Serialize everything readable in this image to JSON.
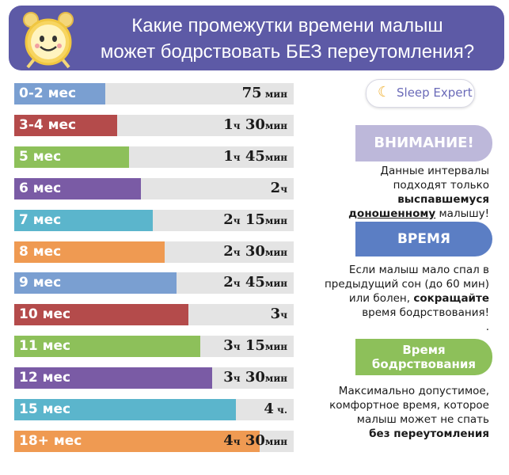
{
  "header": {
    "title_line1": "Какие промежутки времени малыш",
    "title_line2": "может бодрствовать БЕЗ переутомления?"
  },
  "logo": {
    "text": "Sleep Expert",
    "moon": "☾"
  },
  "chart_data": {
    "type": "bar",
    "orientation": "horizontal",
    "unit": "minutes",
    "xlim": [
      0,
      300
    ],
    "categories": [
      "0-2 мес",
      "3-4 мес",
      "5 мес",
      "6 мес",
      "7 мес",
      "8 мес",
      "9 мес",
      "10 мес",
      "11 мес",
      "12 мес",
      "15 мес",
      "18+ мес"
    ],
    "values": [
      75,
      90,
      105,
      120,
      135,
      150,
      165,
      180,
      195,
      210,
      240,
      270
    ],
    "colors": [
      "#7a9fd1",
      "#b44b4b",
      "#8dc05a",
      "#7a5ba5",
      "#5bb5cc",
      "#ef9a52",
      "#7a9fd1",
      "#b44b4b",
      "#8dc05a",
      "#7a5ba5",
      "#5bb5cc",
      "#ef9a52"
    ],
    "labels": [
      {
        "h": "",
        "hu": "",
        "m": "75",
        "mu": " мин"
      },
      {
        "h": "1",
        "hu": "ч",
        "m": " 30",
        "mu": "мин"
      },
      {
        "h": "1",
        "hu": "ч",
        "m": " 45",
        "mu": "мин"
      },
      {
        "h": "2",
        "hu": "ч",
        "m": "",
        "mu": ""
      },
      {
        "h": "2",
        "hu": "ч",
        "m": " 15",
        "mu": "мин"
      },
      {
        "h": "2",
        "hu": "ч",
        "m": " 30",
        "mu": "мин"
      },
      {
        "h": "2",
        "hu": "ч",
        "m": " 45",
        "mu": "мин"
      },
      {
        "h": "3",
        "hu": "ч",
        "m": "",
        "mu": ""
      },
      {
        "h": "3",
        "hu": "ч",
        "m": " 15",
        "mu": "мин"
      },
      {
        "h": "3",
        "hu": "ч",
        "m": " 30",
        "mu": "мин"
      },
      {
        "h": "4",
        "hu": " ч.",
        "m": "",
        "mu": ""
      },
      {
        "h": "4",
        "hu": "ч",
        "m": " 30",
        "mu": "мин"
      }
    ]
  },
  "attention": {
    "badge": "ВНИМАНИЕ!",
    "line1": "Данные интервалы",
    "line2": "подходят только",
    "line3_bold": "выспавшемуся",
    "line4_underlined": "доношенному",
    "line4_rest": " малышу!"
  },
  "time": {
    "badge": "ВРЕМЯ",
    "line1": "Если малыш  мало спал в",
    "line2": "предыдущий сон (до 60 мин)",
    "line3_plain": "или болен, ",
    "line3_bold": "сокращайте",
    "line4": "время бодрствования!",
    "line5": "."
  },
  "wake": {
    "badge_line1": "Время",
    "badge_line2": "бодрствования",
    "line1": "Максимально допустимое,",
    "line2": "комфортное  время, которое",
    "line3": "малыш может не спать",
    "line4_bold": "без переутомления"
  }
}
